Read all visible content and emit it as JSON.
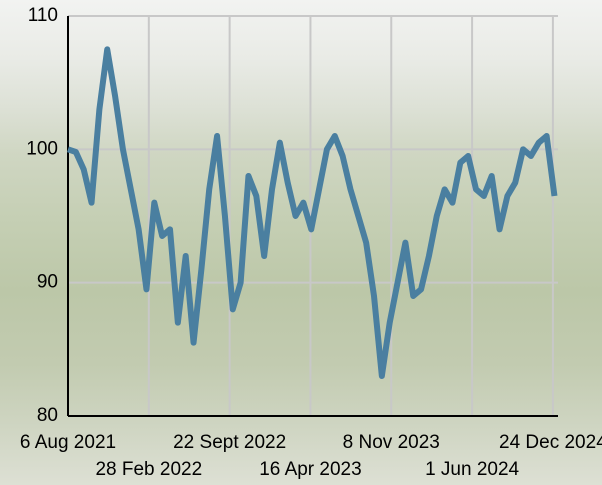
{
  "chart_data": {
    "type": "line",
    "x": [
      "2021-08-06",
      "2021-08-26",
      "2021-09-15",
      "2021-10-05",
      "2021-10-25",
      "2021-11-14",
      "2021-12-04",
      "2021-12-24",
      "2022-01-13",
      "2022-02-02",
      "2022-02-22",
      "2022-03-14",
      "2022-04-03",
      "2022-04-23",
      "2022-05-13",
      "2022-06-02",
      "2022-06-22",
      "2022-07-12",
      "2022-08-01",
      "2022-08-21",
      "2022-09-10",
      "2022-09-30",
      "2022-10-20",
      "2022-11-09",
      "2022-11-29",
      "2022-12-19",
      "2023-01-08",
      "2023-01-28",
      "2023-02-17",
      "2023-03-09",
      "2023-03-29",
      "2023-04-18",
      "2023-05-08",
      "2023-05-28",
      "2023-06-17",
      "2023-07-07",
      "2023-07-27",
      "2023-08-16",
      "2023-09-05",
      "2023-09-25",
      "2023-10-15",
      "2023-11-04",
      "2023-11-24",
      "2023-12-14",
      "2024-01-03",
      "2024-01-23",
      "2024-02-12",
      "2024-03-03",
      "2024-03-23",
      "2024-04-12",
      "2024-05-02",
      "2024-05-22",
      "2024-06-11",
      "2024-07-01",
      "2024-07-21",
      "2024-08-10",
      "2024-08-30",
      "2024-09-19",
      "2024-10-09",
      "2024-10-29",
      "2024-11-18",
      "2024-12-08",
      "2024-12-28"
    ],
    "series": [
      {
        "color": "#4a7fa0",
        "values": [
          100,
          99.8,
          98.5,
          96,
          103,
          107.5,
          104,
          100,
          97,
          94,
          89.5,
          96,
          93.5,
          94,
          87,
          92,
          85.5,
          91,
          97,
          101,
          95,
          88,
          90,
          98,
          96.5,
          92,
          97,
          100.5,
          97.5,
          95,
          96,
          94,
          97,
          100,
          101,
          99.5,
          97,
          95,
          93,
          89,
          83,
          87,
          90,
          93,
          89,
          89.5,
          92,
          95,
          97,
          96,
          99,
          99.5,
          97,
          96.5,
          98,
          94,
          96.5,
          97.5,
          100,
          99.5,
          100.5,
          101,
          96.5
        ]
      }
    ],
    "xlim": [
      "2021-08-06",
      "2025-01-06"
    ],
    "xticks": [
      {
        "value": "2021-08-06",
        "label": "6 Aug 2021"
      },
      {
        "value": "2022-02-28",
        "label": "28 Feb 2022"
      },
      {
        "value": "2022-09-22",
        "label": "22 Sept 2022"
      },
      {
        "value": "2023-04-16",
        "label": "16 Apr 2023"
      },
      {
        "value": "2023-11-08",
        "label": "8 Nov 2023"
      },
      {
        "value": "2024-06-01",
        "label": "1 Jun 2024"
      },
      {
        "value": "2024-12-24",
        "label": "24 Dec 2024"
      }
    ],
    "ylim": [
      80,
      110
    ],
    "yticks": [
      80,
      90,
      100,
      110
    ],
    "grid": true
  }
}
